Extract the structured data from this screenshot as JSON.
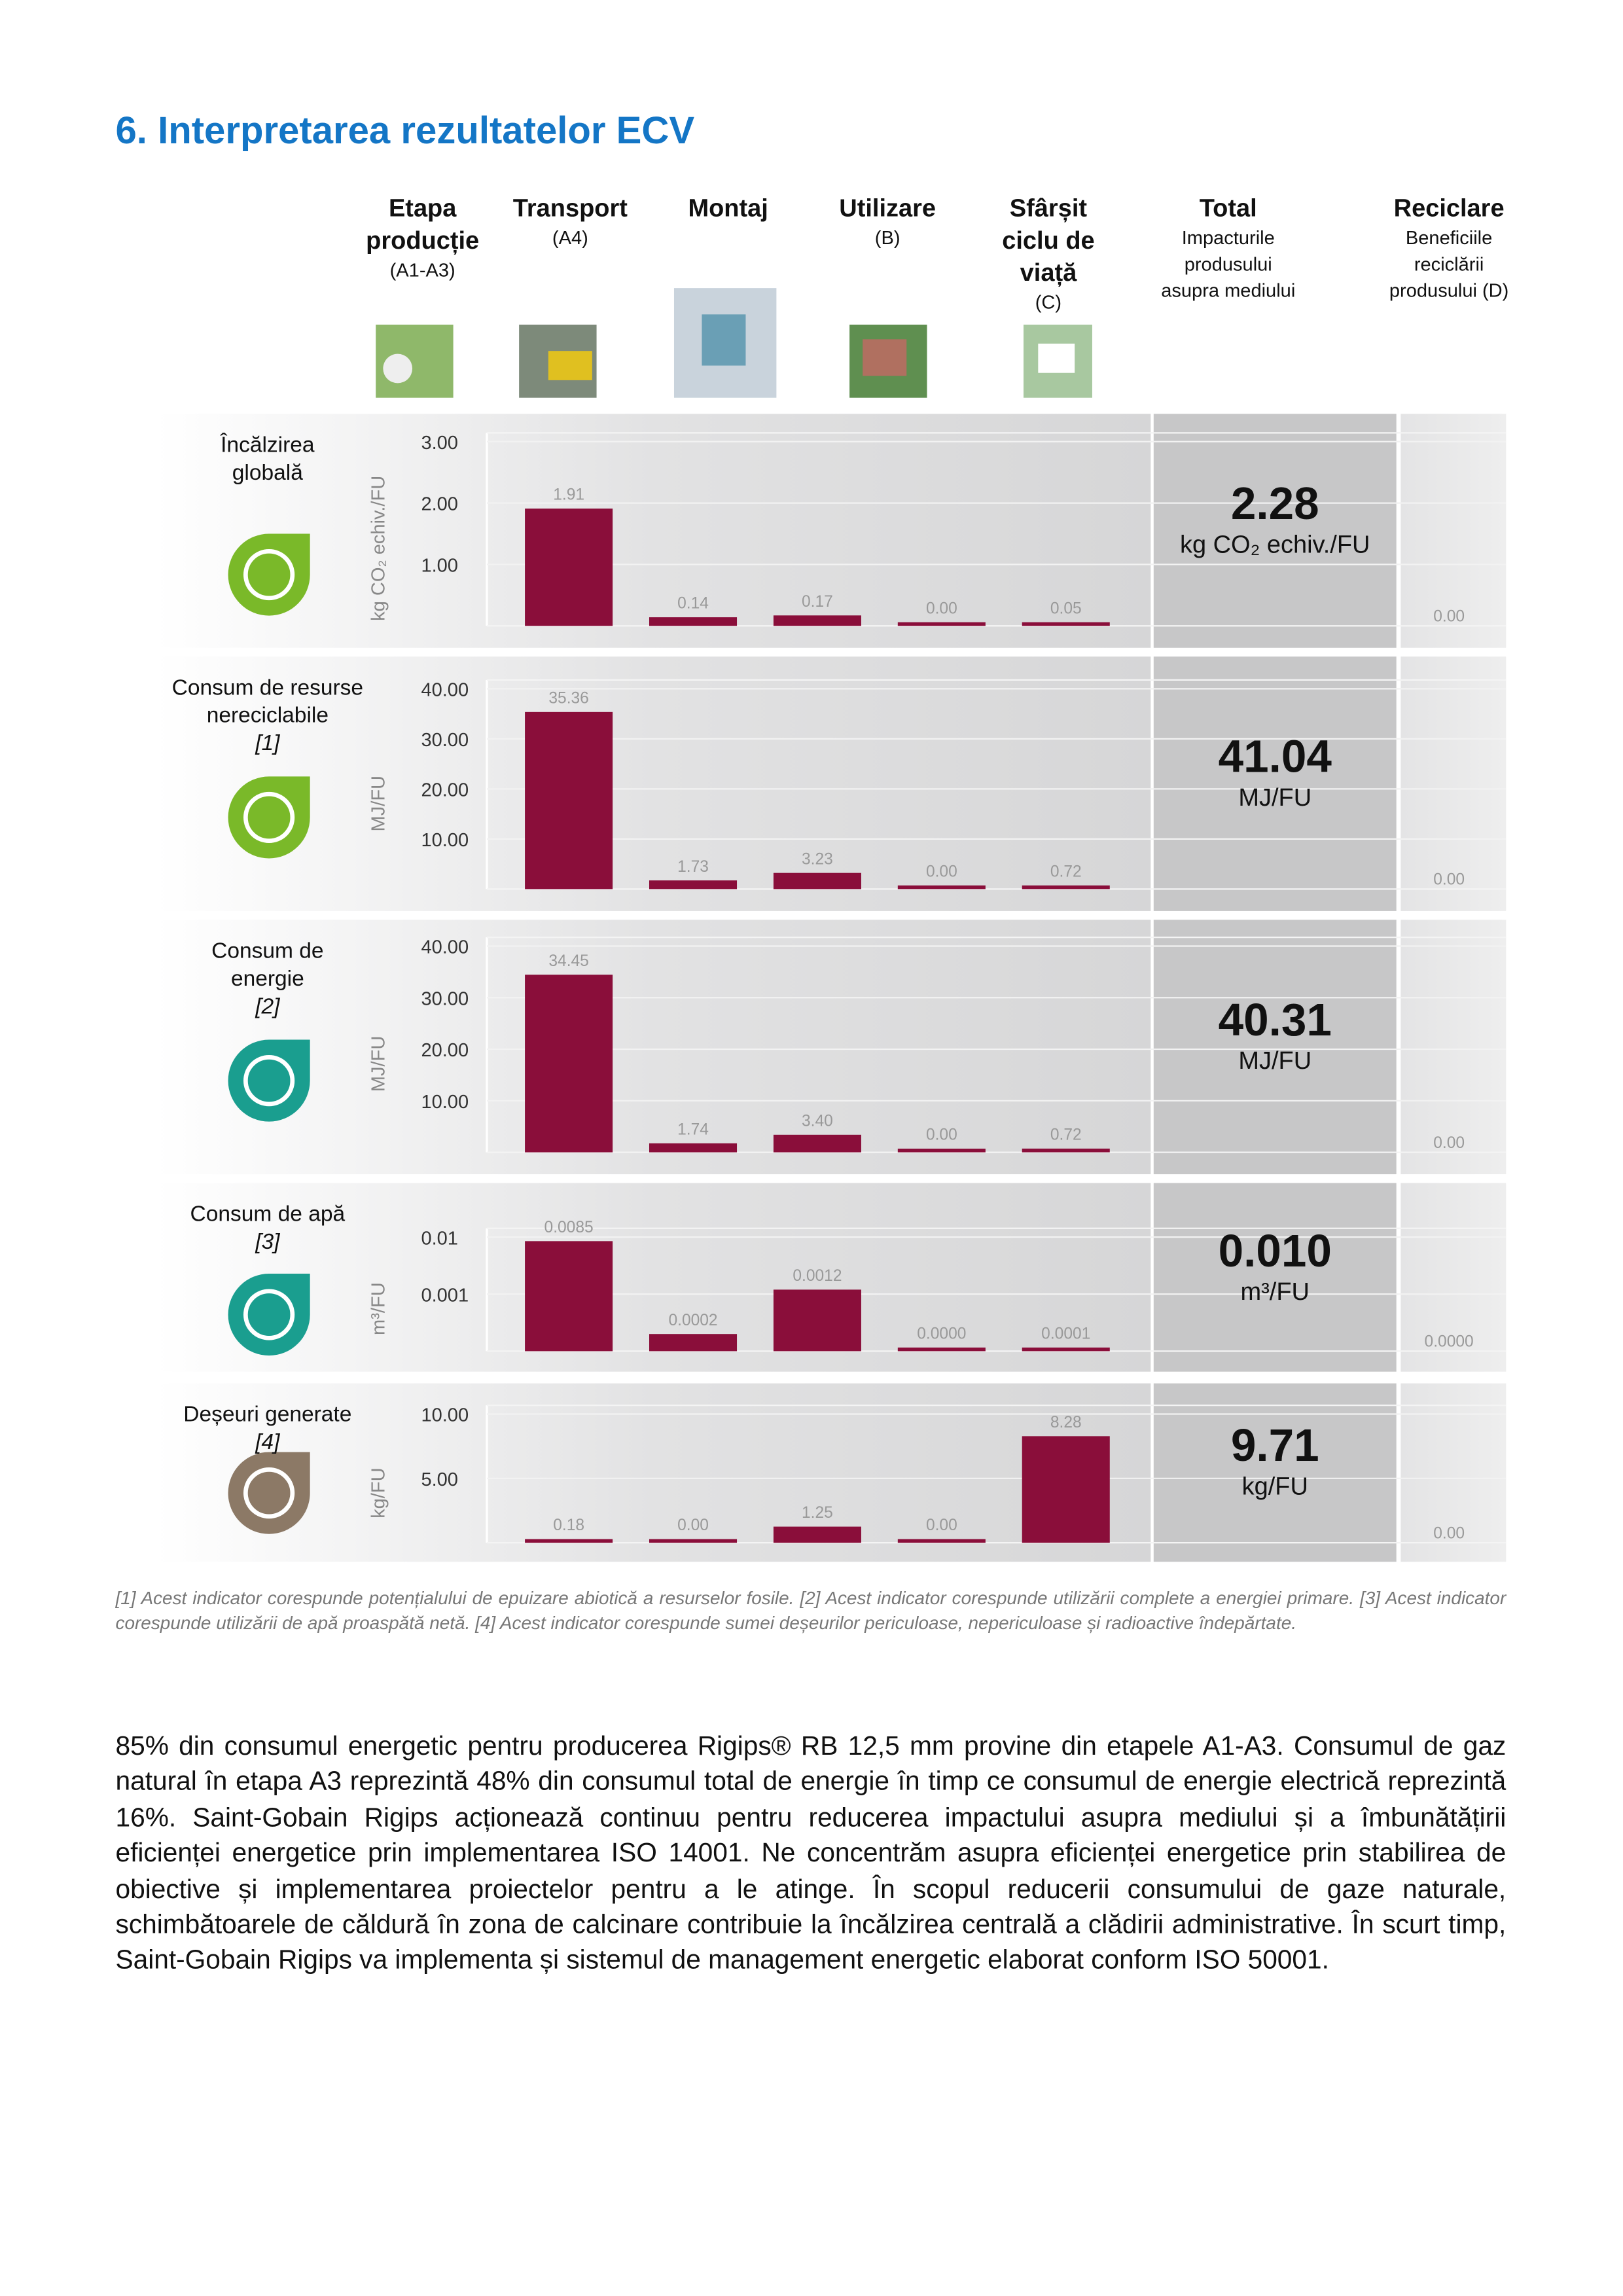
{
  "heading": "6. Interpretarea rezultatelor ECV",
  "columns": [
    {
      "title": "Etapa producție",
      "subtitle": "(A1-A3)"
    },
    {
      "title": "Transport",
      "subtitle": "(A4)"
    },
    {
      "title": "Montaj"
    },
    {
      "title": "Utilizare",
      "subtitle": "(B)"
    },
    {
      "title": "Sfârșit ciclu de viață",
      "subtitle": "(C)"
    },
    {
      "title": "Total",
      "subtitle": "Impacturile produsului asupra mediului"
    },
    {
      "title": "Reciclare",
      "subtitle": "Beneficiile reciclării produsului (D)"
    }
  ],
  "chart_data": [
    {
      "type": "bar",
      "title": "Încălzirea globală",
      "y_label": "kg CO₂ echiv./FU",
      "color": "#8a0e3a",
      "values": [
        1.91,
        0.14,
        0.17,
        0,
        0.05
      ],
      "value_labels": [
        "1.91",
        "0.14",
        "0.17",
        "0.00",
        "0.05"
      ],
      "ylim": [
        0,
        3
      ],
      "yticks": [
        {
          "value": 1,
          "label": "1.00"
        },
        {
          "value": 2,
          "label": "2.00"
        },
        {
          "value": 3,
          "label": "3.00"
        }
      ],
      "total": "2.28",
      "total_unit": "kg CO₂ echiv./FU",
      "recycling": "0.00"
    },
    {
      "type": "bar",
      "title": "Consum de resurse nereciclabile",
      "note": "[1]",
      "y_label": "MJ/FU",
      "color": "#8a0e3a",
      "values": [
        35.36,
        1.73,
        3.23,
        0,
        0.72
      ],
      "value_labels": [
        "35.36",
        "1.73",
        "3.23",
        "0.00",
        "0.72"
      ],
      "ylim": [
        0,
        40
      ],
      "yticks": [
        {
          "value": 10,
          "label": "10.00"
        },
        {
          "value": 20,
          "label": "20.00"
        },
        {
          "value": 30,
          "label": "30.00"
        },
        {
          "value": 40,
          "label": "40.00"
        }
      ],
      "total": "41.04",
      "total_unit": "MJ/FU",
      "recycling": "0.00"
    },
    {
      "type": "bar",
      "title": "Consum de energie",
      "note": "[2]",
      "y_label": "MJ/FU",
      "color": "#8a0e3a",
      "values": [
        34.45,
        1.74,
        3.4,
        0,
        0.72
      ],
      "value_labels": [
        "34.45",
        "1.74",
        "3.40",
        "0.00",
        "0.72"
      ],
      "ylim": [
        0,
        40
      ],
      "yticks": [
        {
          "value": 10,
          "label": "10.00"
        },
        {
          "value": 20,
          "label": "20.00"
        },
        {
          "value": 30,
          "label": "30.00"
        },
        {
          "value": 40,
          "label": "40.00"
        }
      ],
      "total": "40.31",
      "total_unit": "MJ/FU",
      "recycling": "0.00"
    },
    {
      "type": "bar",
      "title": "Consum de apă",
      "note": "[3]",
      "y_label": "m³/FU",
      "color": "#8a0e3a",
      "log": true,
      "values": [
        0.0085,
        0.0002,
        0.0012,
        0,
        0.0001
      ],
      "value_labels": [
        "0.0085",
        "0.0002",
        "0.0012",
        "0.0000",
        "0.0001"
      ],
      "ylim": [
        0.0001,
        0.01
      ],
      "yticks": [
        0.001,
        0.01
      ],
      "total": "0.010",
      "total_unit": "m³/FU",
      "recycling": "0.0000"
    },
    {
      "type": "bar",
      "title": "Deșeuri generate",
      "note": "[4]",
      "y_label": "kg/FU",
      "color": "#8a0e3a",
      "values": [
        0.18,
        0,
        1.25,
        0,
        8.28
      ],
      "value_labels": [
        "0.18",
        "0.00",
        "1.25",
        "0.00",
        "8.28"
      ],
      "ylim": [
        0,
        10
      ],
      "yticks": [
        {
          "value": 5,
          "label": "5.00"
        },
        {
          "value": 10,
          "label": "10.00"
        }
      ],
      "total": "9.71",
      "total_unit": "kg/FU",
      "recycling": "0.00"
    }
  ],
  "footnotes": "[1] Acest indicator corespunde potențialului de epuizare abiotică a resurselor fosile. [2] Acest indicator corespunde utilizării complete a energiei primare. [3] Acest indicator corespunde utilizării de apă proaspătă netă. [4] Acest indicator corespunde sumei deșeurilor periculoase, nepericuloase și radioactive îndepărtate.",
  "paragraph": "85% din consumul energetic pentru producerea Rigips® RB 12,5 mm provine din etapele A1-A3. Consumul de gaz natural în etapa A3 reprezintă 48% din consumul total de energie în timp ce consumul de energie electrică reprezintă 16%. Saint-Gobain Rigips acționează continuu pentru reducerea impactului asupra mediului și a îmbunătățirii eficienței energetice prin implementarea ISO 14001. Ne concentrăm asupra eficienței energetice prin stabilirea de obiective și implementarea proiectelor pentru a le atinge. În scopul reducerii consumului de gaze naturale, schimbătoarele de căldură în zona de calcinare contribuie la încălzirea centrală a clădirii administrative. În scurt timp, Saint-Gobain Rigips va implementa și sistemul de management energetic elaborat conform  ISO 50001."
}
